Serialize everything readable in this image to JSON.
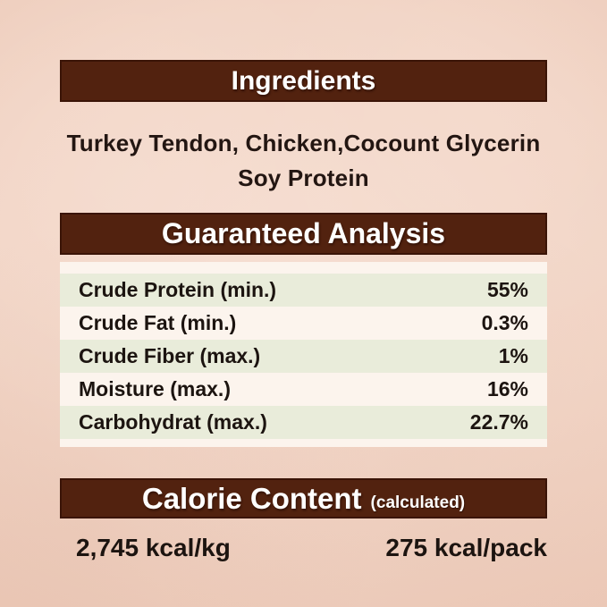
{
  "colors": {
    "header_bar": "#52220f",
    "header_border": "#3a1407",
    "header_text": "#ffffff",
    "body_text": "#1c1410",
    "stripe_green": "#e9ecda",
    "table_base": "#fcf4ed",
    "background_center": "#f6ddd0",
    "background_edge": "#e8c2ae"
  },
  "ingredients": {
    "title": "Ingredients",
    "line1": "Turkey Tendon, Chicken,Cocount Glycerin",
    "line2": "Soy Protein"
  },
  "guaranteed_analysis": {
    "title": "Guaranteed Analysis",
    "rows": [
      {
        "label": "Crude Protein (min.)",
        "value": "55%"
      },
      {
        "label": "Crude Fat (min.)",
        "value": "0.3%"
      },
      {
        "label": "Crude Fiber (max.)",
        "value": "1%"
      },
      {
        "label": "Moisture (max.)",
        "value": "16%"
      },
      {
        "label": "Carbohydrat (max.)",
        "value": "22.7%"
      }
    ]
  },
  "calorie_content": {
    "title": "Calorie Content",
    "subtitle": "(calculated)",
    "kcal_per_kg": "2,745 kcal/kg",
    "kcal_per_pack": "275 kcal/pack"
  }
}
